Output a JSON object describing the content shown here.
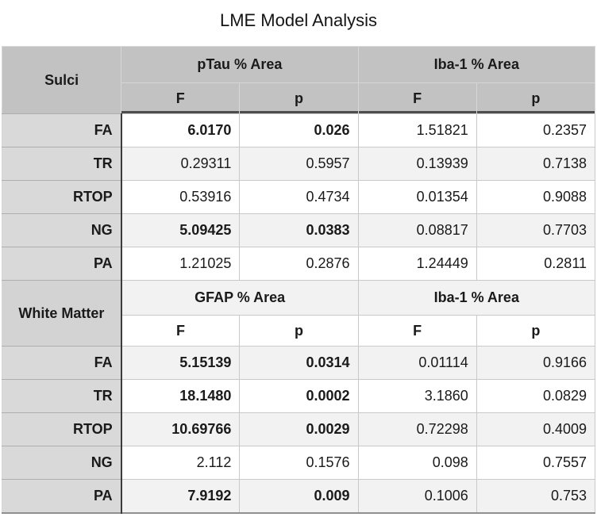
{
  "title": "LME Model Analysis",
  "colors": {
    "header_bg": "#c2c2c2",
    "label_column_bg": "#d9d9d9",
    "stripe_row_bg": "#f2f2f2",
    "white_row_bg": "#ffffff",
    "dark_border": "#3c3c3c",
    "text": "#1a1a1a"
  },
  "chart_data": {
    "type": "table",
    "title": "LME Model Analysis",
    "layout": {
      "columns": [
        "row label",
        "F",
        "p",
        "F",
        "p"
      ],
      "note": "significant results (p < 0.05) shown in bold"
    },
    "sections": [
      {
        "label": "Sulci",
        "groups": [
          "pTau % Area",
          "Iba-1 % Area"
        ],
        "subheaders": [
          "F",
          "p",
          "F",
          "p"
        ],
        "rows": [
          {
            "label": "FA",
            "values": [
              "6.0170",
              "0.026",
              "1.51821",
              "0.2357"
            ],
            "bold": [
              true,
              true,
              false,
              false
            ]
          },
          {
            "label": "TR",
            "values": [
              "0.29311",
              "0.5957",
              "0.13939",
              "0.7138"
            ],
            "bold": [
              false,
              false,
              false,
              false
            ]
          },
          {
            "label": "RTOP",
            "values": [
              "0.53916",
              "0.4734",
              "0.01354",
              "0.9088"
            ],
            "bold": [
              false,
              false,
              false,
              false
            ]
          },
          {
            "label": "NG",
            "values": [
              "5.09425",
              "0.0383",
              "0.08817",
              "0.7703"
            ],
            "bold": [
              true,
              true,
              false,
              false
            ]
          },
          {
            "label": "PA",
            "values": [
              "1.21025",
              "0.2876",
              "1.24449",
              "0.2811"
            ],
            "bold": [
              false,
              false,
              false,
              false
            ]
          }
        ]
      },
      {
        "label": "White Matter",
        "groups": [
          "GFAP % Area",
          "Iba-1 % Area"
        ],
        "subheaders": [
          "F",
          "p",
          "F",
          "p"
        ],
        "rows": [
          {
            "label": "FA",
            "values": [
              "5.15139",
              "0.0314",
              "0.01114",
              "0.9166"
            ],
            "bold": [
              true,
              true,
              false,
              false
            ]
          },
          {
            "label": "TR",
            "values": [
              "18.1480",
              "0.0002",
              "3.1860",
              "0.0829"
            ],
            "bold": [
              true,
              true,
              false,
              false
            ]
          },
          {
            "label": "RTOP",
            "values": [
              "10.69766",
              "0.0029",
              "0.72298",
              "0.4009"
            ],
            "bold": [
              true,
              true,
              false,
              false
            ]
          },
          {
            "label": "NG",
            "values": [
              "2.112",
              "0.1576",
              "0.098",
              "0.7557"
            ],
            "bold": [
              false,
              false,
              false,
              false
            ]
          },
          {
            "label": "PA",
            "values": [
              "7.9192",
              "0.009",
              "0.1006",
              "0.753"
            ],
            "bold": [
              true,
              true,
              false,
              false
            ]
          }
        ]
      }
    ]
  }
}
